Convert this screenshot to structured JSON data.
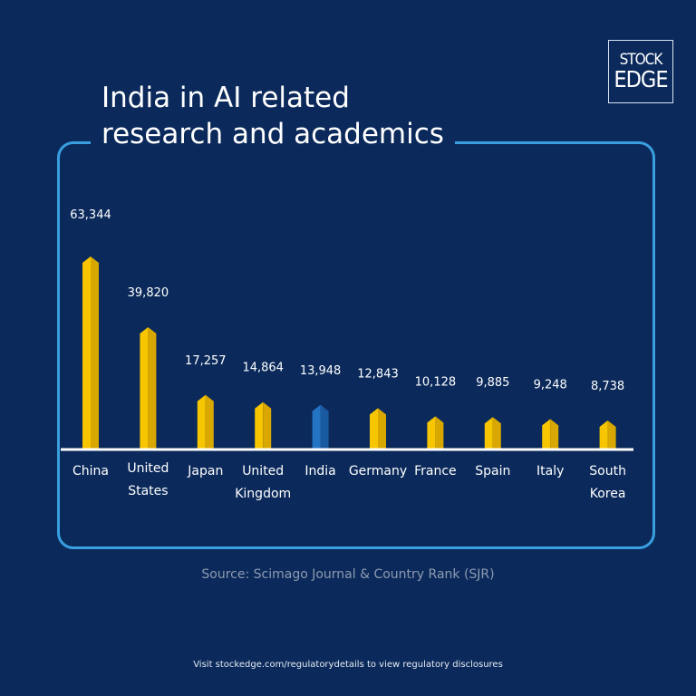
{
  "title": "India in AI related research and academics",
  "title_lines": [
    "India in AI related",
    "research and academics"
  ],
  "logo": {
    "line1": "STOCK",
    "line2": "EDGE"
  },
  "source": "Source: Scimago Journal & Country Rank (SJR)",
  "footer": "Visit stockedge.com/regulatorydetails to view regulatory disclosures",
  "colors": {
    "background": "#0b2a5b",
    "frame": "#3a9fe0",
    "bar": "#f7c600",
    "bar_shade": "#d9a800",
    "highlight": "#2474c4",
    "highlight_shade": "#1a5aa0"
  },
  "chart_data": {
    "type": "bar",
    "title": "India in AI related research and academics",
    "categories": [
      "China",
      "United States",
      "Japan",
      "United Kingdom",
      "India",
      "Germany",
      "France",
      "Spain",
      "Italy",
      "South Korea"
    ],
    "category_lines": [
      [
        "China"
      ],
      [
        "United",
        "States"
      ],
      [
        "Japan"
      ],
      [
        "United",
        "Kingdom"
      ],
      [
        "India"
      ],
      [
        "Germany"
      ],
      [
        "France"
      ],
      [
        "Spain"
      ],
      [
        "Italy"
      ],
      [
        "South",
        "Korea"
      ]
    ],
    "values": [
      63344,
      39820,
      17257,
      14864,
      13948,
      12843,
      10128,
      9885,
      9248,
      8738
    ],
    "value_labels": [
      "63,344",
      "39,820",
      "17,257",
      "14,864",
      "13,948",
      "12,843",
      "10,128",
      "9,885",
      "9,248",
      "8,738"
    ],
    "highlight": "India",
    "grid": false,
    "legend": "none",
    "xlabel": "",
    "ylabel": ""
  }
}
